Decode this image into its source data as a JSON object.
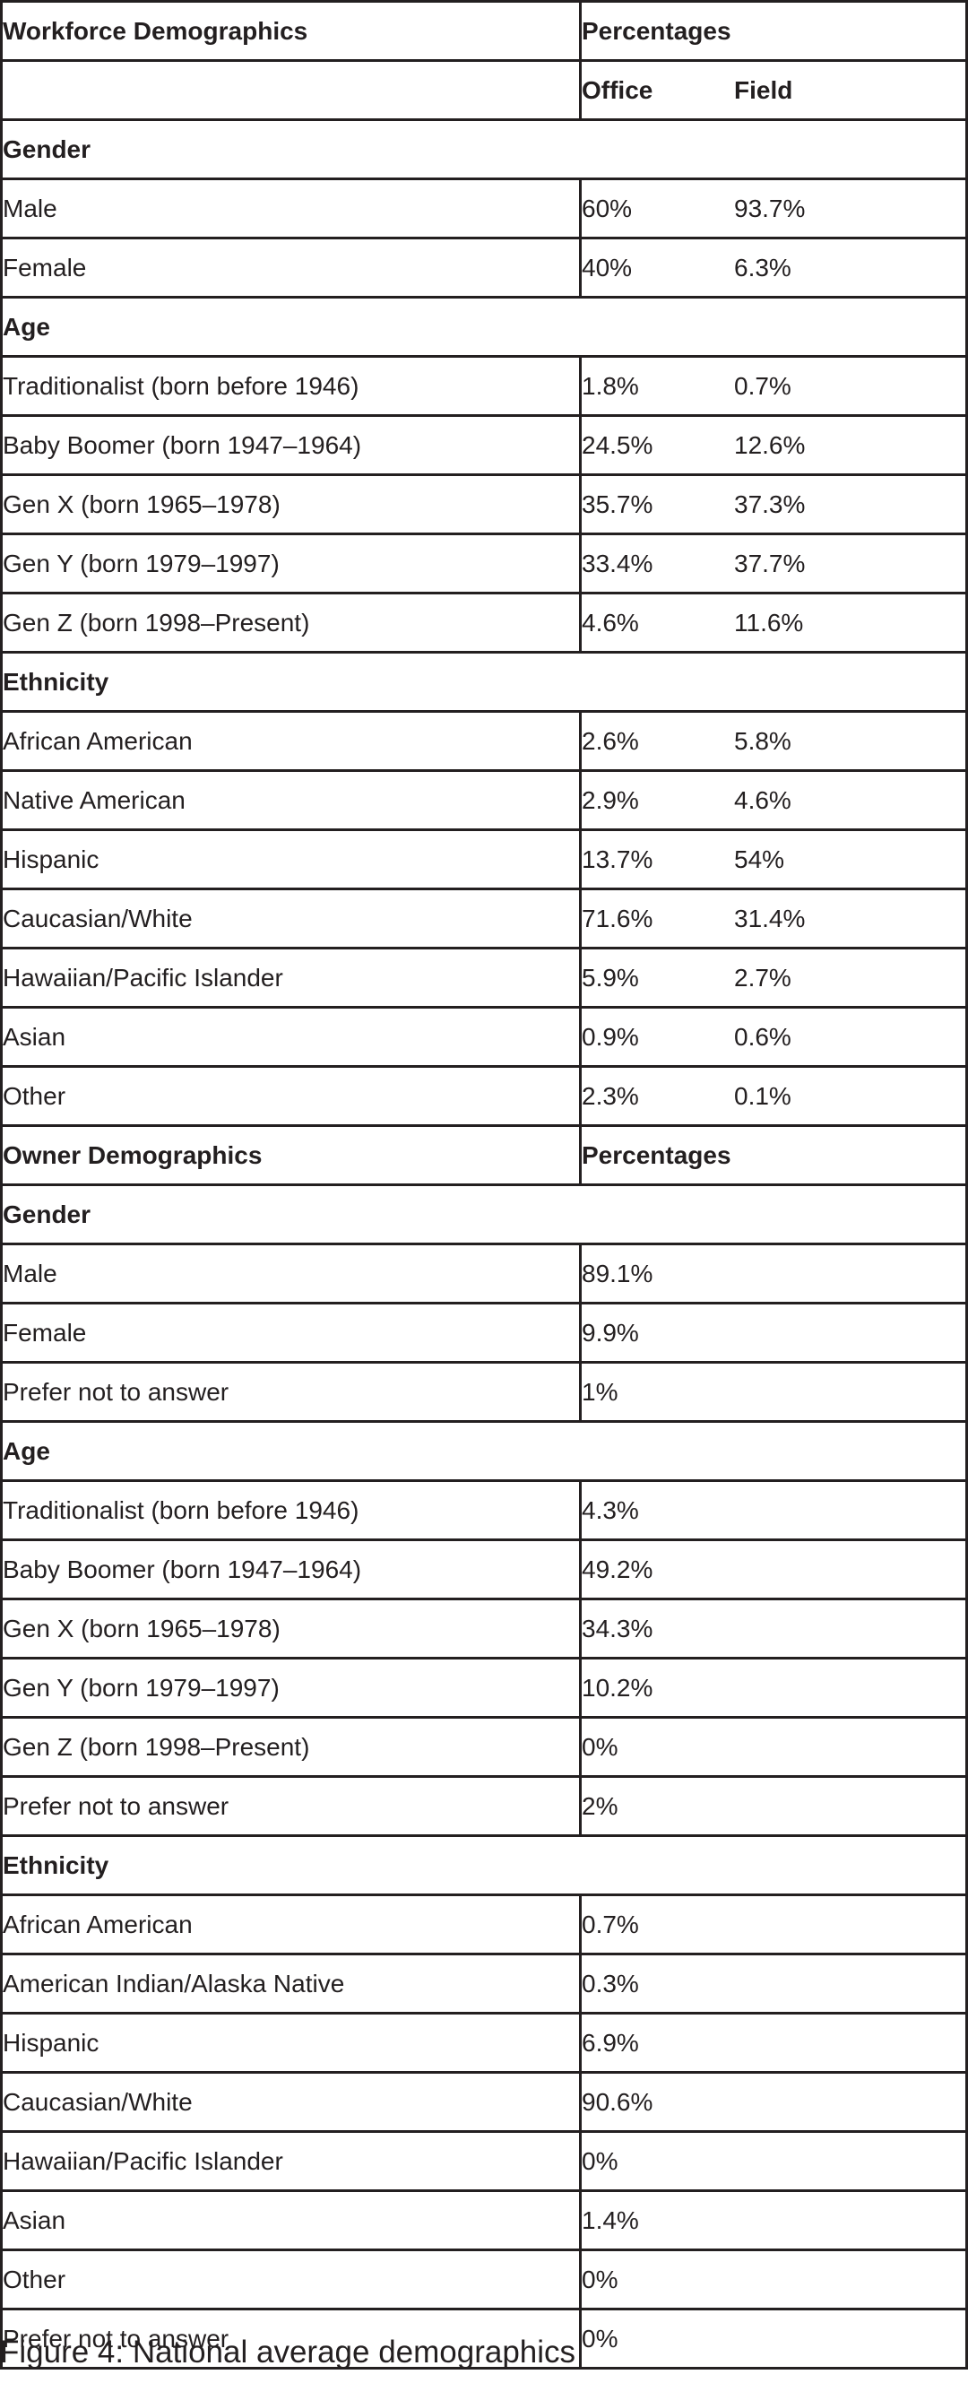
{
  "workforce": {
    "title": "Workforce Demographics",
    "percent_header": "Percentages",
    "office_header": "Office",
    "field_header": "Field",
    "sections": [
      {
        "name": "Gender",
        "rows": [
          {
            "label": "Male",
            "office": "60%",
            "field": "93.7%"
          },
          {
            "label": "Female",
            "office": "40%",
            "field": "6.3%"
          }
        ]
      },
      {
        "name": "Age",
        "rows": [
          {
            "label": "Traditionalist (born before 1946)",
            "office": "1.8%",
            "field": "0.7%"
          },
          {
            "label": "Baby Boomer (born 1947–1964)",
            "office": "24.5%",
            "field": "12.6%"
          },
          {
            "label": "Gen X (born 1965–1978)",
            "office": "35.7%",
            "field": "37.3%"
          },
          {
            "label": "Gen Y (born 1979–1997)",
            "office": "33.4%",
            "field": "37.7%"
          },
          {
            "label": "Gen Z (born 1998–Present)",
            "office": "4.6%",
            "field": "11.6%"
          }
        ]
      },
      {
        "name": "Ethnicity",
        "rows": [
          {
            "label": "African American",
            "office": "2.6%",
            "field": "5.8%"
          },
          {
            "label": "Native American",
            "office": "2.9%",
            "field": "4.6%"
          },
          {
            "label": "Hispanic",
            "office": "13.7%",
            "field": "54%"
          },
          {
            "label": "Caucasian/White",
            "office": "71.6%",
            "field": "31.4%"
          },
          {
            "label": "Hawaiian/Pacific Islander",
            "office": "5.9%",
            "field": "2.7%"
          },
          {
            "label": "Asian",
            "office": "0.9%",
            "field": "0.6%"
          },
          {
            "label": "Other",
            "office": "2.3%",
            "field": "0.1%"
          }
        ]
      }
    ]
  },
  "owner": {
    "title": "Owner Demographics",
    "percent_header": "Percentages",
    "sections": [
      {
        "name": "Gender",
        "rows": [
          {
            "label": "Male",
            "value": "89.1%"
          },
          {
            "label": "Female",
            "value": "9.9%"
          },
          {
            "label": "Prefer not to answer",
            "value": "1%"
          }
        ]
      },
      {
        "name": "Age",
        "rows": [
          {
            "label": "Traditionalist (born before 1946)",
            "value": "4.3%"
          },
          {
            "label": "Baby Boomer (born 1947–1964)",
            "value": "49.2%"
          },
          {
            "label": "Gen X (born 1965–1978)",
            "value": "34.3%"
          },
          {
            "label": "Gen Y (born 1979–1997)",
            "value": "10.2%"
          },
          {
            "label": "Gen Z (born 1998–Present)",
            "value": "0%"
          },
          {
            "label": "Prefer not to answer",
            "value": "2%"
          }
        ]
      },
      {
        "name": "Ethnicity",
        "rows": [
          {
            "label": "African American",
            "value": "0.7%"
          },
          {
            "label": "American Indian/Alaska Native",
            "value": "0.3%"
          },
          {
            "label": "Hispanic",
            "value": "6.9%"
          },
          {
            "label": "Caucasian/White",
            "value": "90.6%"
          },
          {
            "label": "Hawaiian/Pacific Islander",
            "value": "0%"
          },
          {
            "label": "Asian",
            "value": "1.4%"
          },
          {
            "label": "Other",
            "value": "0%"
          },
          {
            "label": "Prefer not to answer",
            "value": "0%"
          }
        ]
      }
    ]
  },
  "caption": "Figure 4: National average demographics"
}
